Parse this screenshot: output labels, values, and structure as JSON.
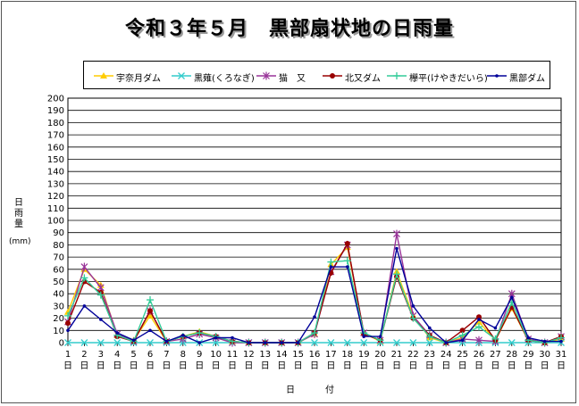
{
  "chart_data": {
    "type": "line",
    "title": "令和３年５月　黒部扇状地の日雨量",
    "ylabel": "日雨量",
    "yunit": "(mm)",
    "xlabel": "日　付",
    "ylim": [
      0,
      200
    ],
    "ytick_step": 10,
    "grid": true,
    "legend_position": "top",
    "x": [
      "1",
      "2",
      "3",
      "4",
      "5",
      "6",
      "7",
      "8",
      "9",
      "10",
      "11",
      "12",
      "13",
      "14",
      "15",
      "16",
      "17",
      "18",
      "19",
      "20",
      "21",
      "22",
      "23",
      "24",
      "25",
      "26",
      "27",
      "28",
      "29",
      "30",
      "31"
    ],
    "x_suffix": "日",
    "series": [
      {
        "name": "宇奈月ダム",
        "color": "#ffcc00",
        "marker": "triangle",
        "values": [
          25,
          60,
          47,
          6,
          2,
          22,
          1,
          5,
          9,
          5,
          1,
          0,
          0,
          0,
          0,
          7,
          64,
          78,
          8,
          1,
          58,
          22,
          4,
          0,
          4,
          17,
          2,
          28,
          2,
          0,
          3
        ]
      },
      {
        "name": "黒薙(くろなぎ)",
        "color": "#33cccc",
        "marker": "x",
        "values": [
          0,
          0,
          0,
          0,
          0,
          0,
          0,
          0,
          0,
          0,
          0,
          0,
          0,
          0,
          0,
          0,
          0,
          0,
          0,
          0,
          0,
          0,
          0,
          0,
          0,
          0,
          0,
          0,
          0,
          0,
          0
        ]
      },
      {
        "name": "猫　又",
        "color": "#993399",
        "marker": "star",
        "values": [
          17,
          62,
          45,
          7,
          1,
          26,
          1,
          3,
          7,
          4,
          0,
          0,
          0,
          0,
          0,
          7,
          58,
          80,
          8,
          2,
          89,
          22,
          6,
          0,
          3,
          2,
          1,
          40,
          3,
          0,
          5
        ]
      },
      {
        "name": "北又ダム",
        "color": "#990000",
        "marker": "circle",
        "values": [
          16,
          50,
          41,
          5,
          1,
          26,
          1,
          5,
          8,
          5,
          1,
          0,
          0,
          0,
          0,
          8,
          57,
          81,
          7,
          2,
          54,
          20,
          6,
          0,
          10,
          21,
          2,
          29,
          2,
          0,
          5
        ]
      },
      {
        "name": "欅平(けやきだいら)",
        "color": "#33cc99",
        "marker": "plus",
        "values": [
          22,
          53,
          39,
          6,
          1,
          35,
          1,
          5,
          8,
          5,
          1,
          0,
          0,
          0,
          0,
          8,
          66,
          67,
          8,
          2,
          56,
          20,
          5,
          0,
          6,
          13,
          3,
          33,
          2,
          0,
          4
        ]
      },
      {
        "name": "黒部ダム",
        "color": "#000099",
        "marker": "dot",
        "values": [
          10,
          30,
          19,
          8,
          2,
          10,
          1,
          6,
          0,
          4,
          4,
          0,
          0,
          0,
          0,
          21,
          62,
          62,
          5,
          5,
          77,
          30,
          12,
          0,
          2,
          19,
          12,
          37,
          4,
          1,
          1
        ]
      }
    ]
  }
}
